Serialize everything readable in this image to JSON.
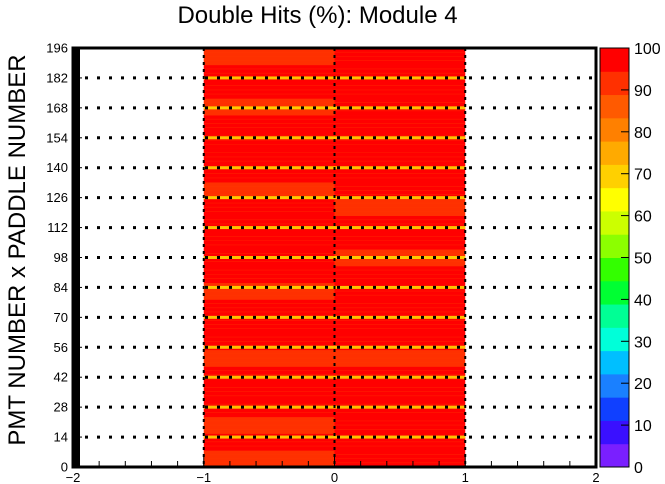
{
  "chart_data": {
    "type": "heatmap",
    "title": "Double Hits (%): Module 4",
    "xlabel": "",
    "ylabel": "PMT NUMBER x PADDLE NUMBER",
    "xlim": [
      -2,
      2
    ],
    "ylim": [
      0,
      196
    ],
    "x_ticks": [
      "−2",
      "−1",
      "0",
      "1",
      "2"
    ],
    "y_ticks": [
      "0",
      "14",
      "28",
      "42",
      "56",
      "70",
      "84",
      "98",
      "112",
      "126",
      "140",
      "154",
      "168",
      "182",
      "196"
    ],
    "color_scale": {
      "min": 0,
      "max": 100,
      "ticks": [
        "0",
        "10",
        "20",
        "30",
        "40",
        "50",
        "60",
        "70",
        "80",
        "90",
        "100"
      ],
      "colors": [
        "#7a1fff",
        "#3a10ff",
        "#1040ff",
        "#1a80ff",
        "#00bfff",
        "#00ffd9",
        "#00ff95",
        "#00ff33",
        "#33ff00",
        "#8cff00",
        "#ccff00",
        "#ffff00",
        "#ffd000",
        "#ffaa00",
        "#ff8000",
        "#ff5a00",
        "#ff3000",
        "#ff0000"
      ]
    },
    "grid": true,
    "filled_x_ranges": [
      [
        -1,
        0
      ],
      [
        0,
        1
      ]
    ],
    "row_values_bin_neg1_0": [
      92,
      97,
      94,
      97,
      95,
      97,
      93,
      96,
      97,
      95,
      92,
      97,
      96,
      95,
      97,
      96,
      94,
      97,
      95,
      97,
      96,
      94,
      97,
      95,
      93
    ],
    "row_values_bin_0_1": [
      96,
      97,
      95,
      97,
      96,
      97,
      94,
      97,
      95,
      96,
      97,
      95,
      93,
      97,
      96,
      94,
      97,
      96,
      95,
      97,
      96,
      95,
      97,
      96,
      97
    ],
    "colors": {
      "high": "#ff0000",
      "mid_high": "#ff3a00",
      "yellow": "#ffff00",
      "grid": "#000000"
    }
  }
}
